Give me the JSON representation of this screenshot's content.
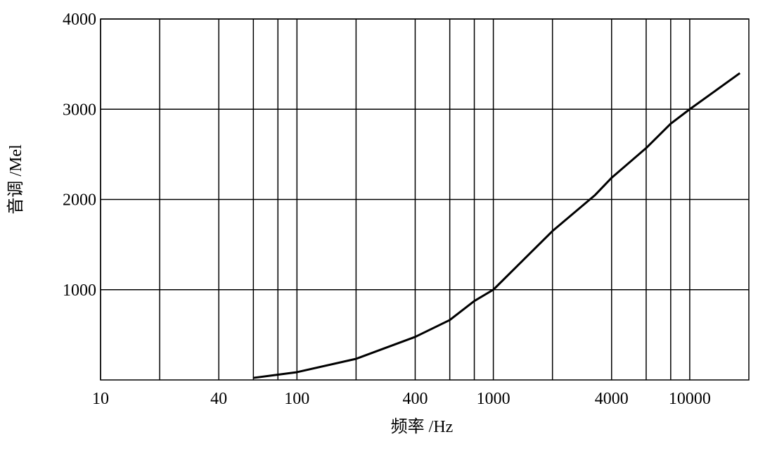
{
  "chart_data": {
    "type": "line",
    "x_label": "频率 /Hz",
    "y_label": "音调 /Mel",
    "x_scale": "log",
    "x": [
      60,
      100,
      200,
      400,
      600,
      800,
      1000,
      2000,
      3300,
      4000,
      6000,
      8000,
      10000,
      18000
    ],
    "series": [
      {
        "color": "#000000",
        "values": [
          23,
          86,
          234,
          477,
          664,
          875,
          1000,
          1650,
          2050,
          2240,
          2570,
          2840,
          3000,
          3400
        ]
      }
    ],
    "xlim": [
      10,
      20000
    ],
    "xticks": [
      10,
      40,
      100,
      400,
      1000,
      4000,
      10000
    ],
    "xgrid": [
      20,
      60,
      80,
      200,
      600,
      800,
      2000,
      6000,
      8000
    ],
    "ylim": [
      0,
      4000
    ],
    "yticks": [
      1000,
      2000,
      3000,
      4000
    ],
    "grid": true
  }
}
